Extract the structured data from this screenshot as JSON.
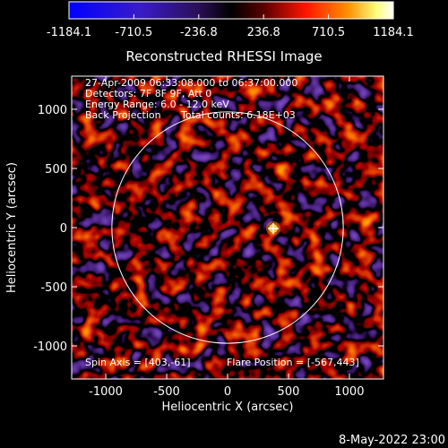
{
  "title": "Reconstructed RHESSI Image",
  "header_lines": [
    "27-Apr-2009 06:33:08.000 to 06:37:00.000",
    "Detectors: 7F 8F 9F, Att 0",
    "Energy Range: 6.0 - 12.0 keV",
    "Back Projection",
    "Total counts: 6.18E+03"
  ],
  "colorbar": {
    "ticks": [
      "-1184.1",
      "-710.5",
      "-236.8",
      "236.8",
      "710.5",
      "1184.1"
    ],
    "min": -1184.1,
    "max": 1184.1
  },
  "axes": {
    "xlabel": "Heliocentric X (arcsec)",
    "ylabel": "Heliocentric Y (arcsec)",
    "xticks": [
      "-1000",
      "-500",
      "0",
      "500",
      "1000"
    ],
    "yticks": [
      "-1000",
      "-500",
      "0",
      "500",
      "1000"
    ],
    "xrange": [
      -1280,
      1280
    ],
    "yrange": [
      -1280,
      1280
    ]
  },
  "spin_axis": "Spin Axis = [403,-61]",
  "flare_position": "Flare Position = [-567,443]",
  "footer_timestamp": "8-May-2022 23:00",
  "colors": {
    "background": "#000000",
    "min_color": "#1a1aff",
    "mid_color": "#000000",
    "max_color": "#ffffff"
  },
  "solar_limb_radius_arcsec": 950
}
